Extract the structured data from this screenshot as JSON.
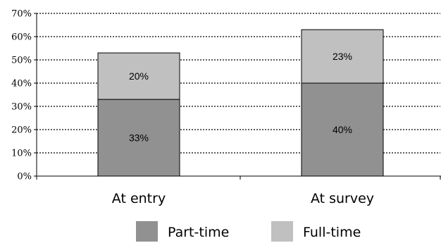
{
  "chart_data": {
    "type": "bar",
    "stacked": true,
    "categories": [
      "At entry",
      "At survey"
    ],
    "series": [
      {
        "name": "Part-time",
        "values": [
          33,
          40
        ],
        "labels": [
          "33%",
          "40%"
        ],
        "color": "#919191"
      },
      {
        "name": "Full-time",
        "values": [
          20,
          23
        ],
        "labels": [
          "20%",
          "23%"
        ],
        "color": "#c0c0c0"
      }
    ],
    "ylim": [
      0,
      70
    ],
    "yticks": [
      0,
      10,
      20,
      30,
      40,
      50,
      60,
      70
    ],
    "ytick_labels": [
      "0%",
      "10%",
      "20%",
      "30%",
      "40%",
      "50%",
      "60%",
      "70%"
    ],
    "grid": true,
    "grid_style": "dotted",
    "legend_position": "bottom"
  }
}
